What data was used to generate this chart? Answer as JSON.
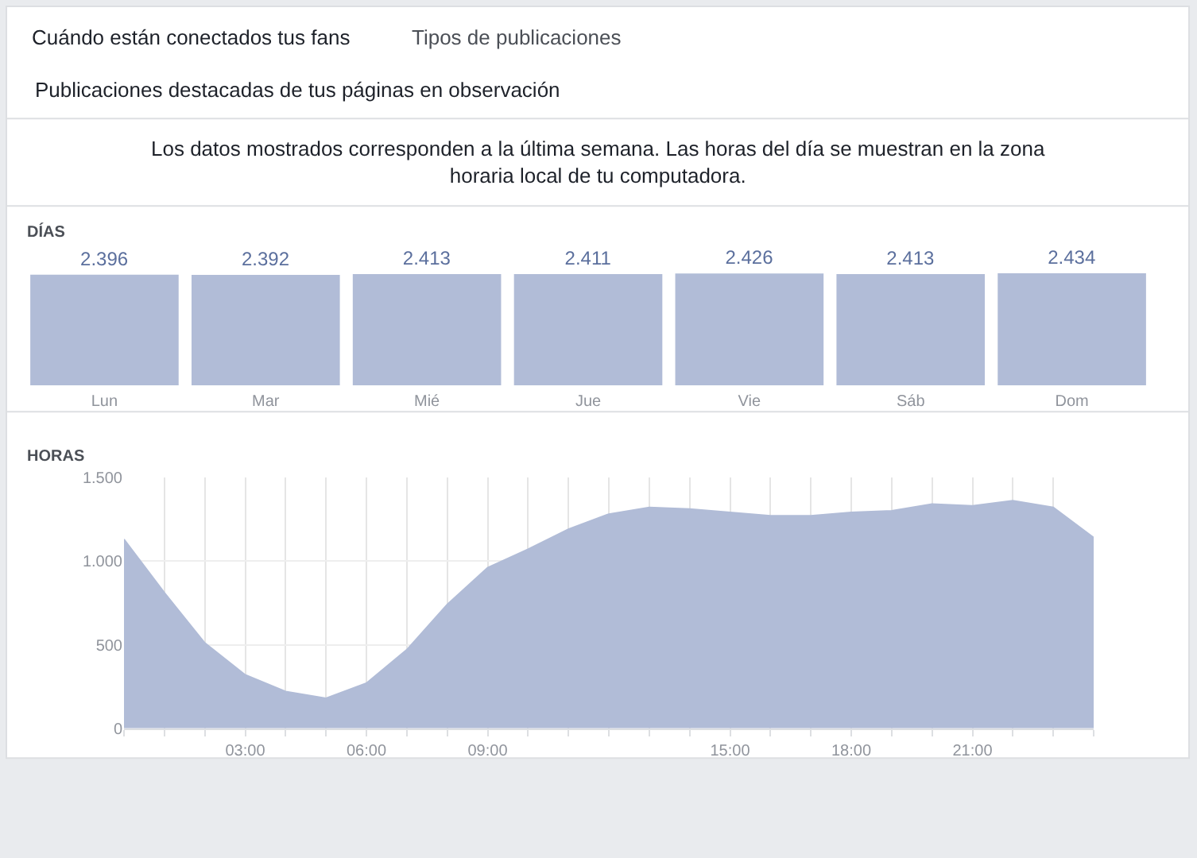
{
  "chart_data": [
    {
      "type": "bar",
      "title": "DÍAS",
      "categories": [
        "Lun",
        "Mar",
        "Mié",
        "Jue",
        "Vie",
        "Sáb",
        "Dom"
      ],
      "values": [
        2396,
        2392,
        2413,
        2411,
        2426,
        2413,
        2434
      ],
      "color": "#b1bcd7",
      "data_labels": true,
      "value_labels": [
        "2.396",
        "2.392",
        "2.413",
        "2.411",
        "2.426",
        "2.413",
        "2.434"
      ],
      "annotations": [
        "Cuándo están conectados tus fans",
        "Tipos de publicaciones",
        "Publicaciones destacadas de tus páginas en observación",
        "Los datos mostrados corresponden a la última semana. Las horas del día se muestran en la zona horaria local de tu computadora."
      ]
    },
    {
      "type": "area",
      "title": "HORAS",
      "x": [
        0,
        1,
        2,
        3,
        4,
        5,
        6,
        7,
        8,
        9,
        10,
        11,
        12,
        13,
        14,
        15,
        16,
        17,
        18,
        19,
        20,
        21,
        22,
        23,
        24
      ],
      "values": [
        1130,
        810,
        510,
        320,
        220,
        180,
        270,
        470,
        740,
        960,
        1070,
        1190,
        1280,
        1320,
        1310,
        1290,
        1270,
        1270,
        1290,
        1300,
        1340,
        1330,
        1360,
        1320,
        1140
      ],
      "color": "#b1bcd7",
      "xlim": [
        0,
        24
      ],
      "ylim": [
        0,
        1500
      ],
      "yticks": [
        {
          "value": 0,
          "label": "0"
        },
        {
          "value": 500,
          "label": "500"
        },
        {
          "value": 1000,
          "label": "1.000"
        },
        {
          "value": 1500,
          "label": "1.500"
        }
      ],
      "xticks": [
        {
          "value": 0,
          "label": null
        },
        {
          "value": 1,
          "label": null
        },
        {
          "value": 2,
          "label": null
        },
        {
          "value": 3,
          "label": "03:00"
        },
        {
          "value": 4,
          "label": null
        },
        {
          "value": 5,
          "label": null
        },
        {
          "value": 6,
          "label": "06:00"
        },
        {
          "value": 7,
          "label": null
        },
        {
          "value": 8,
          "label": null
        },
        {
          "value": 9,
          "label": "09:00"
        },
        {
          "value": 10,
          "label": null
        },
        {
          "value": 11,
          "label": null
        },
        {
          "value": 12,
          "label": null
        },
        {
          "value": 13,
          "label": null
        },
        {
          "value": 14,
          "label": null
        },
        {
          "value": 15,
          "label": "15:00"
        },
        {
          "value": 16,
          "label": null
        },
        {
          "value": 17,
          "label": null
        },
        {
          "value": 18,
          "label": "18:00"
        },
        {
          "value": 19,
          "label": null
        },
        {
          "value": 20,
          "label": null
        },
        {
          "value": 21,
          "label": "21:00"
        },
        {
          "value": 22,
          "label": null
        },
        {
          "value": 23,
          "label": null
        },
        {
          "value": 24,
          "label": null
        }
      ],
      "grid": true
    }
  ]
}
